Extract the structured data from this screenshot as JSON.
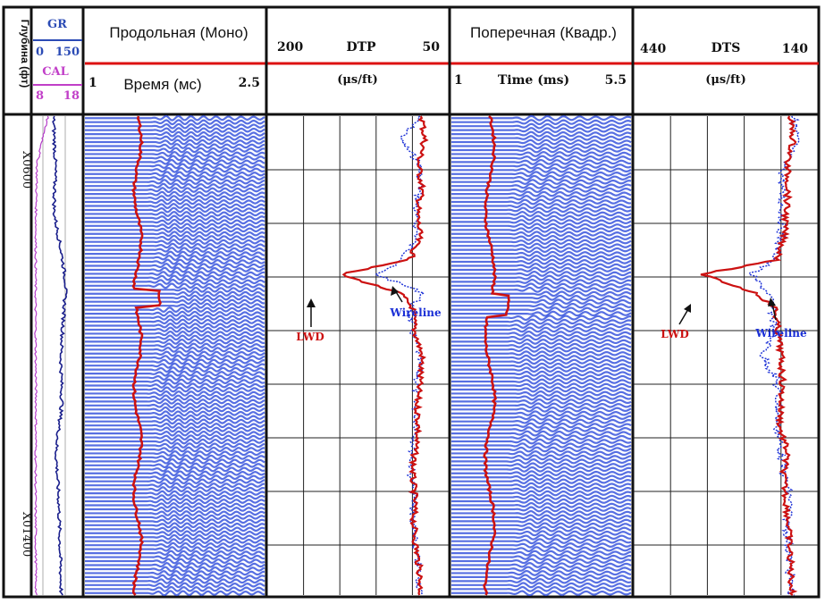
{
  "colors": {
    "lwd": "#cc1111",
    "wireline": "#1a2fd6",
    "gr": "#1a1f8c",
    "cal": "#b53cc9",
    "header_line": "#dd1111",
    "grid": "#222222",
    "wave": "#1f3fd8"
  },
  "depth_track": {
    "title": "Глубина (фт)",
    "ticks": [
      "X0600",
      "X01400"
    ]
  },
  "gr_cal_track": {
    "gr_label": "GR",
    "gr_min": "0",
    "gr_max": "150",
    "cal_label": "CAL",
    "cal_min": "8",
    "cal_max": "18"
  },
  "mono_track": {
    "title": "Продольная (Моно)",
    "axis_min": "1",
    "axis_label": "Время (мс)",
    "axis_max": "2.5"
  },
  "dtp_track": {
    "axis_left": "200",
    "axis_label": "DTP",
    "axis_right": "50",
    "unit": "(μs/ft)",
    "annotation_lwd": "LWD",
    "annotation_wireline": "Wireline"
  },
  "quad_track": {
    "title": "Поперечная (Квадр.)",
    "axis_min": "1",
    "axis_label": "Time (ms)",
    "axis_max": "5.5"
  },
  "dts_track": {
    "axis_left": "440",
    "axis_label": "DTS",
    "axis_right": "140",
    "unit": "(μs/ft)",
    "annotation_lwd": "LWD",
    "annotation_wireline": "Wireline"
  },
  "chart_data": {
    "type": "line",
    "depth_range": [
      0,
      1
    ],
    "tracks": [
      {
        "name": "DTP",
        "xlim": [
          200,
          50
        ],
        "series": [
          {
            "name": "LWD",
            "depth": [
              0,
              0.05,
              0.1,
              0.15,
              0.2,
              0.25,
              0.3,
              0.33,
              0.37,
              0.4,
              0.45,
              0.5,
              0.55,
              0.6,
              0.65,
              0.7,
              0.75,
              0.8,
              0.85,
              0.9,
              0.95,
              1.0
            ],
            "values": [
              72,
              70,
              75,
              72,
              76,
              74,
              82,
              140,
              90,
              80,
              78,
              72,
              74,
              76,
              75,
              78,
              80,
              78,
              79,
              77,
              74,
              73
            ]
          },
          {
            "name": "Wireline",
            "depth": [
              0,
              0.05,
              0.1,
              0.15,
              0.2,
              0.25,
              0.3,
              0.33,
              0.37,
              0.4,
              0.45,
              0.5,
              0.55,
              0.6,
              0.65,
              0.7,
              0.75,
              0.8,
              0.85,
              0.9,
              0.95,
              1.0
            ],
            "values": [
              74,
              90,
              74,
              74,
              78,
              76,
              88,
              110,
              70,
              82,
              80,
              74,
              76,
              78,
              76,
              80,
              81,
              79,
              80,
              78,
              75,
              74
            ]
          }
        ]
      },
      {
        "name": "DTS",
        "xlim": [
          440,
          140
        ],
        "series": [
          {
            "name": "LWD",
            "depth": [
              0,
              0.05,
              0.1,
              0.15,
              0.2,
              0.25,
              0.3,
              0.33,
              0.37,
              0.4,
              0.45,
              0.5,
              0.55,
              0.6,
              0.65,
              0.7,
              0.75,
              0.8,
              0.85,
              0.9,
              0.95,
              1.0
            ],
            "values": [
              185,
              180,
              190,
              188,
              192,
              195,
              205,
              330,
              240,
              210,
              205,
              200,
              198,
              200,
              202,
              190,
              196,
              192,
              188,
              186,
              184,
              182
            ]
          },
          {
            "name": "Wireline",
            "depth": [
              0,
              0.05,
              0.1,
              0.15,
              0.2,
              0.25,
              0.3,
              0.33,
              0.37,
              0.4,
              0.45,
              0.5,
              0.55,
              0.6,
              0.65,
              0.7,
              0.75,
              0.8,
              0.85,
              0.9,
              0.95,
              1.0
            ],
            "values": [
              180,
              175,
              195,
              200,
              198,
              200,
              210,
              250,
              220,
              215,
              210,
              230,
              208,
              205,
              206,
              200,
              195,
              185,
              190,
              188,
              186,
              184
            ]
          }
        ]
      },
      {
        "name": "GR",
        "xlim": [
          0,
          150
        ],
        "series": [
          {
            "name": "GR",
            "depth": [
              0,
              0.1,
              0.2,
              0.3,
              0.35,
              0.4,
              0.5,
              0.6,
              0.7,
              0.8,
              0.9,
              1.0
            ],
            "values": [
              62,
              68,
              64,
              90,
              100,
              95,
              85,
              88,
              70,
              78,
              82,
              86
            ]
          }
        ]
      },
      {
        "name": "CAL",
        "xlim": [
          8,
          18
        ],
        "series": [
          {
            "name": "CAL",
            "depth": [
              0,
              0.1,
              0.2,
              0.4,
              0.6,
              0.8,
              1.0
            ],
            "values": [
              11,
              8.8,
              8.6,
              8.5,
              8.6,
              8.5,
              8.6
            ]
          }
        ]
      }
    ]
  }
}
